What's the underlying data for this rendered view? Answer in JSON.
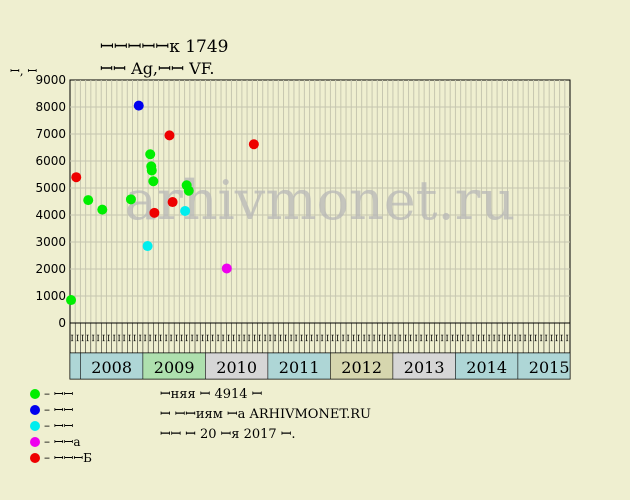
{
  "header": {
    "title_line1": "ꟷꟷꟷꟷꟷк 1749",
    "title_line2": "ꟷꟷ Ag,ꟷꟷ VF."
  },
  "watermark": "arhivmonet.ru",
  "info": {
    "line1": "ꟷняя ꟷ 4914 ꟷ",
    "line2": "ꟷ ꟷꟷиям ꟷа ARHIVMONET.RU",
    "line3": "ꟷꟷ ꟷ 20 ꟷя 2017 ꟷ."
  },
  "chart_data": {
    "type": "scatter",
    "ylabel": "ꟷ, ꟷ",
    "ylim": [
      0,
      9000
    ],
    "yticks": [
      0,
      1000,
      2000,
      3000,
      4000,
      5000,
      6000,
      7000,
      8000,
      9000
    ],
    "grid": true,
    "years": [
      "2008",
      "2009",
      "2010",
      "2011",
      "2012",
      "2013",
      "2014",
      "2015"
    ],
    "year_colors": [
      "#aed6d6",
      "#aee0ae",
      "#d6d6d6",
      "#aed6d6",
      "#d6d6ae",
      "#d6d6d6",
      "#aed6d6",
      "#aed6d6"
    ],
    "months": [
      "ꟷ",
      "ꟷ",
      "ꟷ",
      "ꟷ",
      "ꟷ",
      "ꟷ",
      "ꟷ",
      "ꟷ",
      "ꟷ",
      "ꟷ",
      "ꟷ",
      "ꟷ",
      "ꟷ",
      "ꟷ",
      "ꟷ",
      "ꟷ",
      "ꟷ",
      "ꟷ",
      "ꟷ",
      "ꟷ",
      "ꟷ",
      "ꟷ",
      "ꟷ",
      "ꟷ",
      "ꟷ",
      "ꟷ",
      "ꟷ",
      "ꟷ",
      "ꟷ",
      "ꟷ",
      "ꟷ",
      "ꟷ",
      "ꟷ",
      "ꟷ",
      "ꟷ",
      "ꟷ",
      "ꟷ",
      "ꟷ",
      "ꟷ",
      "ꟷ",
      "ꟷ",
      "ꟷ",
      "ꟷ",
      "ꟷ",
      "ꟷ",
      "ꟷ",
      "ꟷ",
      "ꟷ",
      "ꟷ",
      "ꟷ",
      "ꟷ",
      "ꟷ",
      "ꟷ",
      "ꟷ",
      "ꟷ",
      "ꟷ",
      "ꟷ",
      "ꟷ",
      "ꟷ",
      "ꟷ",
      "ꟷ",
      "ꟷ",
      "ꟷ",
      "ꟷ",
      "ꟷ",
      "ꟷ",
      "ꟷ",
      "ꟷ",
      "ꟷ",
      "ꟷ",
      "ꟷ",
      "ꟷ",
      "ꟷ",
      "ꟷ",
      "ꟷ",
      "ꟷ",
      "ꟷ",
      "ꟷ",
      "ꟷ",
      "ꟷ",
      "ꟷ",
      "ꟷ",
      "ꟷ",
      "ꟷ",
      "ꟷ",
      "ꟷ",
      "ꟷ",
      "ꟷ",
      "ꟷ",
      "ꟷ",
      "ꟷ",
      "ꟷ",
      "ꟷ",
      "ꟷ",
      "ꟷ",
      "ꟷ"
    ],
    "series": [
      {
        "name": "ꟷꟷ",
        "color": "#00ee00",
        "points": [
          {
            "t": 0.2,
            "y": 850
          },
          {
            "t": 3.5,
            "y": 4550
          },
          {
            "t": 6.2,
            "y": 4200
          },
          {
            "t": 11.7,
            "y": 4580
          },
          {
            "t": 15.4,
            "y": 6250
          },
          {
            "t": 15.6,
            "y": 5800
          },
          {
            "t": 15.7,
            "y": 5650
          },
          {
            "t": 16.0,
            "y": 5250
          },
          {
            "t": 22.4,
            "y": 5100
          },
          {
            "t": 22.8,
            "y": 4900
          }
        ]
      },
      {
        "name": "ꟷꟷ",
        "color": "#0000ee",
        "points": [
          {
            "t": 13.2,
            "y": 8050
          }
        ]
      },
      {
        "name": "ꟷꟷ",
        "color": "#00eeee",
        "points": [
          {
            "t": 14.9,
            "y": 2850
          },
          {
            "t": 22.1,
            "y": 4150
          }
        ]
      },
      {
        "name": "ꟷꟷа",
        "color": "#ee00ee",
        "points": [
          {
            "t": 30.1,
            "y": 2020
          }
        ]
      },
      {
        "name": "ꟷꟷꟷБ",
        "color": "#ee0000",
        "points": [
          {
            "t": 1.2,
            "y": 5400
          },
          {
            "t": 16.2,
            "y": 4080
          },
          {
            "t": 19.1,
            "y": 6950
          },
          {
            "t": 19.7,
            "y": 4480
          },
          {
            "t": 35.3,
            "y": 6620
          }
        ]
      }
    ]
  }
}
